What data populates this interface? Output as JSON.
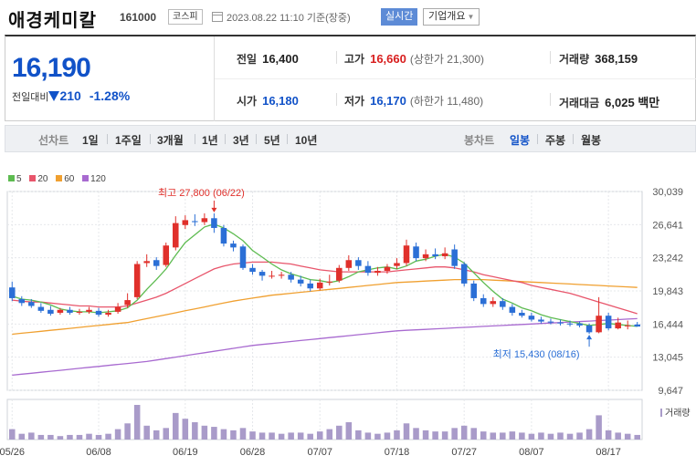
{
  "header": {
    "name": "애경케미칼",
    "code": "161000",
    "market": "코스피",
    "date": "2023.08.22 11:10 기준(장중)",
    "realtime_label": "실시간",
    "overview_label": "기업개요"
  },
  "quote": {
    "price": "16,190",
    "change_label": "전일대비",
    "change": "210",
    "change_pct": "-1.28%",
    "prev_close": {
      "label": "전일",
      "value": "16,400"
    },
    "open": {
      "label": "시가",
      "value": "16,180"
    },
    "high": {
      "label": "고가",
      "value": "16,660",
      "sub": "(상한가 21,300)"
    },
    "low": {
      "label": "저가",
      "value": "16,170",
      "sub": "(하한가 11,480)"
    },
    "volume": {
      "label": "거래량",
      "value": "368,159"
    },
    "amount": {
      "label": "거래대금",
      "value": "6,025 백만"
    }
  },
  "toolbar": {
    "line_label": "선차트",
    "periods": [
      "1일",
      "1주일",
      "3개월",
      "1년",
      "3년",
      "5년",
      "10년"
    ],
    "candle_label": "봉차트",
    "candle_periods": [
      "일봉",
      "주봉",
      "월봉"
    ],
    "active_candle": "일봉"
  },
  "colors": {
    "up": "#e0302b",
    "down": "#2b6fd6",
    "ma5": "#5dbb50",
    "ma20": "#e8556b",
    "ma60": "#f0a030",
    "ma120": "#a86ad0",
    "volume": "#a99bc9"
  },
  "chart_data": {
    "type": "candlestick",
    "legend": [
      {
        "name": "5",
        "color": "#5dbb50"
      },
      {
        "name": "20",
        "color": "#e8556b"
      },
      {
        "name": "60",
        "color": "#f0a030"
      },
      {
        "name": "120",
        "color": "#a86ad0"
      }
    ],
    "y_ticks": [
      30039,
      26641,
      23242,
      19843,
      16444,
      13045,
      9647
    ],
    "y_tick_labels": [
      "30,039",
      "26,641",
      "23,242",
      "19,843",
      "16,444",
      "13,045",
      "9,647"
    ],
    "ylim": [
      9647,
      30039
    ],
    "x_tick_labels": [
      {
        "label": "05/26",
        "index": 0
      },
      {
        "label": "06/08",
        "index": 9
      },
      {
        "label": "06/19",
        "index": 18
      },
      {
        "label": "06/28",
        "index": 25
      },
      {
        "label": "07/07",
        "index": 32
      },
      {
        "label": "07/18",
        "index": 40
      },
      {
        "label": "07/27",
        "index": 47
      },
      {
        "label": "08/07",
        "index": 54
      },
      {
        "label": "08/17",
        "index": 62
      }
    ],
    "volume_label": "거래량",
    "annotations": [
      {
        "text": "최고 27,800 (06/22)",
        "index": 21,
        "value": 27800,
        "kind": "high"
      },
      {
        "text": "최저 15,430 (08/16)",
        "index": 60,
        "value": 15430,
        "kind": "low"
      }
    ],
    "candles": [
      [
        20200,
        19100,
        20800,
        18800
      ],
      [
        19000,
        18600,
        19300,
        18300
      ],
      [
        18700,
        18300,
        19000,
        18100
      ],
      [
        18200,
        17800,
        18600,
        17600
      ],
      [
        17900,
        17500,
        18300,
        17300
      ],
      [
        17600,
        17900,
        18100,
        17400
      ],
      [
        17900,
        17600,
        18200,
        17400
      ],
      [
        17600,
        17700,
        18000,
        17400
      ],
      [
        17700,
        17900,
        18200,
        17500
      ],
      [
        17800,
        17400,
        18100,
        17200
      ],
      [
        17400,
        17600,
        17900,
        17200
      ],
      [
        17700,
        18200,
        18600,
        17500
      ],
      [
        18400,
        18900,
        19600,
        18100
      ],
      [
        19200,
        22600,
        22900,
        19000
      ],
      [
        22700,
        22900,
        23600,
        22300
      ],
      [
        23000,
        22400,
        23300,
        22000
      ],
      [
        22500,
        24500,
        24800,
        22300
      ],
      [
        24300,
        26800,
        27500,
        24000
      ],
      [
        26600,
        27100,
        27600,
        26200
      ],
      [
        27000,
        26900,
        27700,
        26500
      ],
      [
        26900,
        27300,
        27800,
        26600
      ],
      [
        27300,
        26300,
        27800,
        25800
      ],
      [
        26300,
        24700,
        26600,
        24400
      ],
      [
        24700,
        24300,
        25000,
        23900
      ],
      [
        24400,
        22200,
        24600,
        22000
      ],
      [
        22200,
        21800,
        22600,
        21500
      ],
      [
        21800,
        21400,
        22000,
        20900
      ],
      [
        21400,
        21400,
        21900,
        21100
      ],
      [
        21400,
        21500,
        21800,
        21100
      ],
      [
        21500,
        21000,
        21800,
        20700
      ],
      [
        21000,
        20600,
        21400,
        20300
      ],
      [
        20600,
        20100,
        21000,
        19800
      ],
      [
        20100,
        20700,
        21100,
        19900
      ],
      [
        20700,
        20800,
        21500,
        20400
      ],
      [
        20900,
        22200,
        22500,
        20700
      ],
      [
        22200,
        23000,
        23500,
        21900
      ],
      [
        23000,
        22400,
        23300,
        22000
      ],
      [
        22400,
        21700,
        22900,
        21400
      ],
      [
        21700,
        21900,
        22300,
        21400
      ],
      [
        21900,
        22300,
        22600,
        21600
      ],
      [
        22400,
        22700,
        23200,
        22100
      ],
      [
        22700,
        24500,
        25100,
        22400
      ],
      [
        24400,
        23200,
        24800,
        22900
      ],
      [
        23200,
        23600,
        24100,
        22900
      ],
      [
        23600,
        23400,
        24200,
        23100
      ],
      [
        23400,
        23700,
        24300,
        23100
      ],
      [
        24100,
        22400,
        24600,
        22100
      ],
      [
        22600,
        20600,
        22800,
        20300
      ],
      [
        20600,
        19100,
        20900,
        18800
      ],
      [
        19100,
        18500,
        19500,
        18200
      ],
      [
        18500,
        18800,
        19200,
        18200
      ],
      [
        18800,
        18200,
        19100,
        17900
      ],
      [
        18200,
        17600,
        18500,
        17300
      ],
      [
        17600,
        17300,
        17900,
        17100
      ],
      [
        17300,
        16900,
        17600,
        16700
      ],
      [
        16900,
        16700,
        17200,
        16500
      ],
      [
        16700,
        16600,
        17000,
        16400
      ],
      [
        16600,
        16500,
        16900,
        16300
      ],
      [
        16500,
        16400,
        16800,
        16200
      ],
      [
        16500,
        16300,
        16700,
        16100
      ],
      [
        16300,
        15600,
        16500,
        15430
      ],
      [
        15600,
        17300,
        19200,
        15500
      ],
      [
        17300,
        16000,
        17600,
        15800
      ],
      [
        16000,
        16600,
        17100,
        15900
      ],
      [
        16300,
        16300,
        16800,
        15900
      ],
      [
        16400,
        16190,
        16660,
        16170
      ]
    ],
    "volumes": [
      9,
      5,
      6,
      4,
      4,
      3,
      4,
      4,
      5,
      4,
      5,
      9,
      14,
      30,
      12,
      8,
      10,
      23,
      18,
      15,
      12,
      11,
      9,
      8,
      10,
      7,
      6,
      6,
      5,
      6,
      6,
      5,
      7,
      9,
      12,
      15,
      8,
      6,
      5,
      6,
      8,
      14,
      10,
      8,
      7,
      7,
      10,
      12,
      10,
      7,
      6,
      6,
      7,
      6,
      5,
      6,
      5,
      6,
      5,
      6,
      9,
      21,
      8,
      6,
      5,
      4
    ],
    "ma5": [
      19300,
      19000,
      18900,
      18700,
      18400,
      18000,
      17800,
      17700,
      17700,
      17600,
      17700,
      17800,
      18100,
      18900,
      20000,
      21000,
      22100,
      23500,
      24800,
      25600,
      26400,
      26700,
      26300,
      25700,
      25000,
      24000,
      23300,
      22600,
      22000,
      21600,
      21300,
      21000,
      20900,
      20700,
      20900,
      21300,
      21800,
      22000,
      22200,
      22300,
      22100,
      22400,
      22900,
      23100,
      23400,
      23600,
      23300,
      22700,
      21700,
      20700,
      19800,
      19000,
      18600,
      18100,
      17800,
      17400,
      17100,
      16900,
      16700,
      16500,
      16300,
      16400,
      16500,
      16400,
      16300,
      16200
    ],
    "ma20": [
      18900,
      18800,
      18700,
      18700,
      18600,
      18500,
      18400,
      18300,
      18300,
      18200,
      18200,
      18200,
      18300,
      18600,
      18900,
      19200,
      19600,
      20100,
      20600,
      21100,
      21600,
      22100,
      22400,
      22600,
      22700,
      22800,
      22800,
      22800,
      22700,
      22600,
      22400,
      22200,
      22000,
      21900,
      21800,
      21800,
      21800,
      21800,
      21800,
      21800,
      21900,
      22000,
      22100,
      22200,
      22300,
      22300,
      22200,
      22000,
      21800,
      21500,
      21300,
      21100,
      20900,
      20700,
      20400,
      20200,
      20000,
      19800,
      19600,
      19300,
      19000,
      18700,
      18400,
      18100,
      17800,
      17500
    ],
    "ma60": [
      15400,
      15500,
      15600,
      15700,
      15800,
      15900,
      16000,
      16100,
      16200,
      16300,
      16400,
      16500,
      16600,
      16800,
      17000,
      17200,
      17400,
      17600,
      17800,
      18000,
      18200,
      18400,
      18600,
      18800,
      18950,
      19100,
      19250,
      19400,
      19500,
      19600,
      19700,
      19800,
      19900,
      20000,
      20100,
      20200,
      20300,
      20400,
      20500,
      20600,
      20700,
      20750,
      20800,
      20850,
      20900,
      20950,
      21000,
      21000,
      21000,
      21000,
      20950,
      20900,
      20850,
      20800,
      20750,
      20700,
      20650,
      20600,
      20550,
      20500,
      20450,
      20400,
      20350,
      20300,
      20250,
      20200
    ],
    "ma120": [
      11200,
      11300,
      11400,
      11500,
      11600,
      11700,
      11800,
      11900,
      12000,
      12100,
      12200,
      12300,
      12400,
      12500,
      12600,
      12750,
      12900,
      13050,
      13200,
      13350,
      13500,
      13650,
      13800,
      13950,
      14100,
      14250,
      14350,
      14450,
      14550,
      14650,
      14750,
      14850,
      14950,
      15050,
      15150,
      15250,
      15350,
      15450,
      15550,
      15650,
      15750,
      15800,
      15850,
      15900,
      15950,
      16000,
      16050,
      16100,
      16150,
      16200,
      16250,
      16300,
      16350,
      16400,
      16450,
      16500,
      16550,
      16600,
      16650,
      16700,
      16750,
      16800,
      16850,
      16900,
      16950,
      17000
    ]
  }
}
